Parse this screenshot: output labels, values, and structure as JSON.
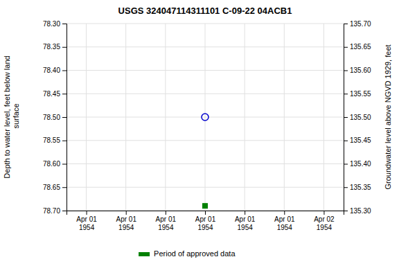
{
  "chart_data": {
    "type": "scatter",
    "title": "USGS 324047114311101 C-09-22 04ACB1",
    "ylabel": "Depth to water level, feet below land\n surface",
    "y2label": "Groundwater level above NGVD 1929, feet",
    "categories": [
      "Apr 01\n1954",
      "Apr 01\n1954",
      "Apr 01\n1954",
      "Apr 01\n1954",
      "Apr 01\n1954",
      "Apr 01\n1954",
      "Apr 02\n1954"
    ],
    "series": [
      {
        "values": [
          null,
          null,
          null,
          78.5,
          null,
          null,
          null
        ],
        "color": "#0000cc",
        "marker": "circle-open"
      },
      {
        "name": "Period of approved data",
        "values": [
          null,
          null,
          null,
          78.69,
          null,
          null,
          null
        ],
        "color": "#008000",
        "marker": "square"
      }
    ],
    "ylim": [
      78.7,
      78.3
    ],
    "yticks": [
      {
        "value": 78.3,
        "label": "78.30"
      },
      78.35,
      {
        "value": 78.4,
        "label": "78.40"
      },
      78.45,
      {
        "value": 78.5,
        "label": "78.50"
      },
      78.55,
      {
        "value": 78.6,
        "label": "78.60"
      },
      78.65,
      {
        "value": 78.7,
        "label": "78.70"
      }
    ],
    "y2lim": [
      135.3,
      135.7
    ],
    "y2ticks": [
      {
        "value": 135.7,
        "label": "135.70"
      },
      135.65,
      {
        "value": 135.6,
        "label": "135.60"
      },
      135.55,
      {
        "value": 135.5,
        "label": "135.50"
      },
      135.45,
      {
        "value": 135.4,
        "label": "135.40"
      },
      135.35,
      {
        "value": 135.3,
        "label": "135.30"
      }
    ],
    "grid": true,
    "legend": "bottom"
  }
}
